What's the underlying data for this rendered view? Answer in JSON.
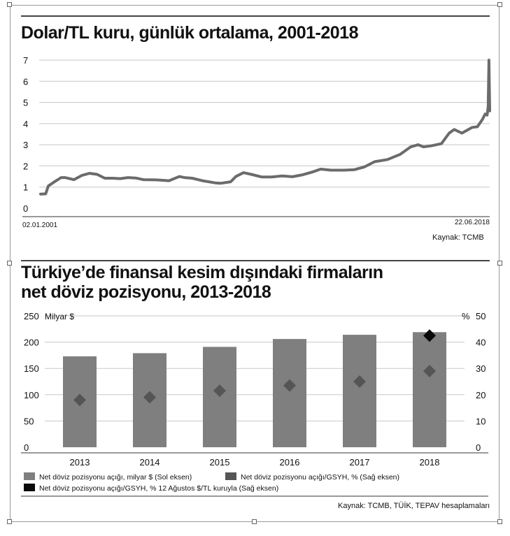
{
  "colors": {
    "line": "#6b6b6b",
    "bar": "#7f7f7f",
    "diamond_gsyh": "#555555",
    "diamond_aug": "#0a0a0a",
    "grid": "#c8c8c8"
  },
  "chart_data": [
    {
      "type": "line",
      "title": "Dolar/TL kuru, günlük ortalama, 2001-2018",
      "source": "Kaynak: TCMB",
      "x_start_label": "02.01.2001",
      "x_end_label": "22.06.2018",
      "yticks": [
        "0",
        "1",
        "2",
        "3",
        "4",
        "5",
        "6",
        "7"
      ],
      "ylim": [
        0,
        7
      ],
      "xlim": [
        2001.0,
        2018.48
      ],
      "grid": true,
      "series": [
        {
          "x": [
            2001.0,
            2001.2,
            2001.3,
            2001.5,
            2001.8,
            2001.95,
            2002.3,
            2002.6,
            2002.9,
            2003.2,
            2003.5,
            2003.8,
            2004.1,
            2004.4,
            2004.7,
            2005.0,
            2005.5,
            2006.0,
            2006.4,
            2006.6,
            2006.9,
            2007.3,
            2007.8,
            2008.0,
            2008.4,
            2008.6,
            2008.9,
            2009.2,
            2009.6,
            2010.0,
            2010.4,
            2010.8,
            2011.2,
            2011.6,
            2011.9,
            2012.3,
            2012.8,
            2013.2,
            2013.6,
            2014.0,
            2014.5,
            2015.0,
            2015.4,
            2015.7,
            2015.9,
            2016.2,
            2016.6,
            2016.9,
            2017.1,
            2017.4,
            2017.8,
            2018.0,
            2018.2,
            2018.3,
            2018.38,
            2018.42,
            2018.45,
            2018.48
          ],
          "values": [
            0.67,
            0.68,
            1.05,
            1.22,
            1.45,
            1.45,
            1.35,
            1.55,
            1.65,
            1.6,
            1.42,
            1.42,
            1.4,
            1.45,
            1.43,
            1.35,
            1.34,
            1.3,
            1.5,
            1.45,
            1.42,
            1.3,
            1.2,
            1.18,
            1.25,
            1.5,
            1.68,
            1.6,
            1.48,
            1.48,
            1.53,
            1.49,
            1.58,
            1.72,
            1.85,
            1.8,
            1.8,
            1.82,
            1.95,
            2.2,
            2.3,
            2.55,
            2.9,
            3.0,
            2.9,
            2.95,
            3.05,
            3.55,
            3.72,
            3.55,
            3.82,
            3.85,
            4.2,
            4.45,
            4.4,
            4.8,
            7.0,
            4.6
          ]
        }
      ]
    },
    {
      "type": "bar",
      "title_line1": "Türkiye’de finansal kesim dışındaki firmaların",
      "title_line2": "net döviz pozisyonu, 2013-2018",
      "source": "Kaynak: TCMB, TÜİK, TEPAV hesaplamaları",
      "left_axis_unit": "Milyar $",
      "right_axis_unit": "%",
      "categories": [
        "2013",
        "2014",
        "2015",
        "2016",
        "2017",
        "2018"
      ],
      "left_ylim": [
        0,
        250
      ],
      "right_ylim": [
        0,
        50
      ],
      "left_ticks": [
        "0",
        "50",
        "100",
        "150",
        "200",
        "250"
      ],
      "right_ticks": [
        "0",
        "10",
        "20",
        "30",
        "40",
        "50"
      ],
      "series": [
        {
          "name": "Net döviz pozisyonu açığı, milyar $ (Sol eksen)",
          "type": "bar",
          "axis": "left",
          "values": [
            173,
            179,
            191,
            206,
            214,
            219
          ]
        },
        {
          "name": "Net döviz pozisyonu açığı/GSYH, % (Sağ eksen)",
          "type": "diamond",
          "axis": "right",
          "values": [
            18,
            19,
            21.5,
            23.5,
            25,
            29
          ]
        },
        {
          "name": "Net döviz pozisyonu açığı/GSYH, % 12 Ağustos $/TL kuruyla (Sağ eksen)",
          "type": "diamond",
          "axis": "right",
          "values": [
            null,
            null,
            null,
            null,
            null,
            42.5
          ]
        }
      ],
      "legend_position": "bottom"
    }
  ]
}
